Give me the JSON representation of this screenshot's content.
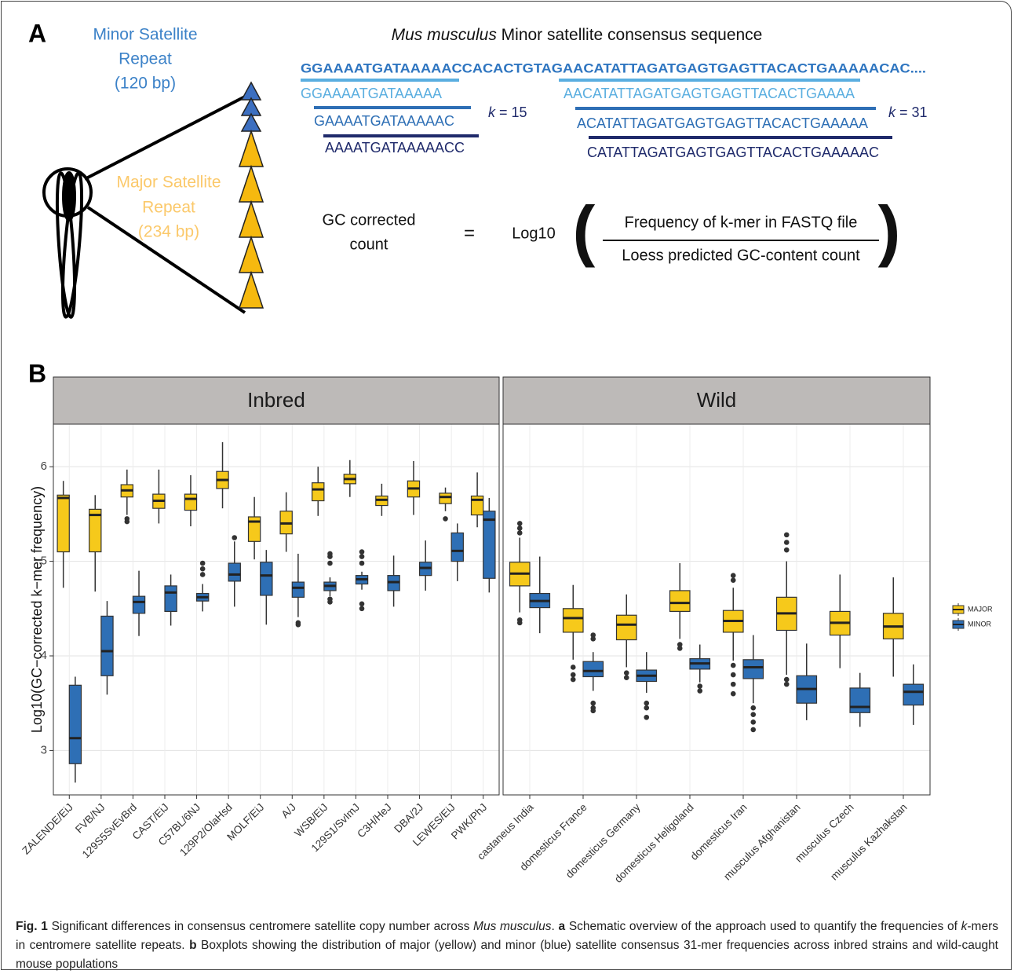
{
  "panel_a": {
    "label": "A",
    "minor_label": [
      "Minor Satellite",
      "Repeat",
      "(120 bp)"
    ],
    "major_label": [
      "Major Satellite",
      "Repeat",
      "(234 bp)"
    ],
    "title_italic": "Mus musculus",
    "title_rest": " Minor satellite consensus sequence",
    "sequence": "GGAAAATGATAAAAACCACACTGTAGAACATATTAGATGAGTGAGTTACACTGAAAAACAC....",
    "kmers15": [
      "GGAAAATGATAAAAA",
      "GAAAATGATAAAAAC",
      "AAAATGATAAAAACC"
    ],
    "kmers31": [
      "AACATATTAGATGAGTGAGTTACACTGAAAA",
      "ACATATTAGATGAGTGAGTTACACTGAAAAA",
      "CATATTAGATGAGTGAGTTACACTGAAAAAC"
    ],
    "k_symbol": "k",
    "k15_rest": " = 15",
    "k31_rest": " = 31",
    "formula_lhs": [
      "GC corrected",
      "count"
    ],
    "formula_eq": "=",
    "formula_log": "Log10",
    "formula_open": "(",
    "formula_close": ")",
    "formula_num": "Frequency of k-mer in FASTQ file",
    "formula_den": "Loess predicted GC-content count"
  },
  "chart_data": {
    "type": "box",
    "panel_label": "B",
    "ylabel": "Log10(GC−corrected k−mer frequency)",
    "ylim": [
      2.53,
      6.45
    ],
    "yticks": [
      3,
      4,
      5,
      6
    ],
    "grid": true,
    "legend": "right",
    "facets": [
      "Inbred",
      "Wild"
    ],
    "categories": [
      [
        "ZALENDE/EiJ",
        "FVB/NJ",
        "129S5SvEvBrd",
        "CAST/EiJ",
        "C57BL/6NJ",
        "129P2/OlaHsd",
        "MOLF/EiJ",
        "A/J",
        "WSB/EiJ",
        "129S1/SvImJ",
        "C3H/HeJ",
        "DBA/2J",
        "LEWES/EiJ",
        "PWK/PhJ"
      ],
      [
        "castaneus India",
        "domesticus France",
        "domesticus Germany",
        "domesticus Heligoland",
        "domesticus Iran",
        "musculus Afghanistan",
        "musculus Czech",
        "musculus Kazhakstan"
      ]
    ],
    "series": [
      {
        "name": "MAJOR",
        "color": "#f6c91b",
        "values": [
          [
            {
              "whislo": 4.72,
              "q1": 5.1,
              "med": 5.67,
              "q3": 5.7,
              "whishi": 5.85,
              "outliers": []
            },
            {
              "whislo": 4.68,
              "q1": 5.1,
              "med": 5.49,
              "q3": 5.55,
              "whishi": 5.7,
              "outliers": []
            },
            {
              "whislo": 5.49,
              "q1": 5.68,
              "med": 5.75,
              "q3": 5.81,
              "whishi": 5.97,
              "outliers": [
                5.45,
                5.42
              ]
            },
            {
              "whislo": 5.4,
              "q1": 5.56,
              "med": 5.64,
              "q3": 5.71,
              "whishi": 5.97,
              "outliers": []
            },
            {
              "whislo": 5.37,
              "q1": 5.54,
              "med": 5.66,
              "q3": 5.71,
              "whishi": 5.91,
              "outliers": []
            },
            {
              "whislo": 5.56,
              "q1": 5.77,
              "med": 5.86,
              "q3": 5.95,
              "whishi": 6.26,
              "outliers": []
            },
            {
              "whislo": 5.02,
              "q1": 5.21,
              "med": 5.42,
              "q3": 5.47,
              "whishi": 5.68,
              "outliers": []
            },
            {
              "whislo": 5.1,
              "q1": 5.29,
              "med": 5.4,
              "q3": 5.53,
              "whishi": 5.73,
              "outliers": []
            },
            {
              "whislo": 5.48,
              "q1": 5.64,
              "med": 5.76,
              "q3": 5.83,
              "whishi": 6.0,
              "outliers": []
            },
            {
              "whislo": 5.68,
              "q1": 5.82,
              "med": 5.87,
              "q3": 5.92,
              "whishi": 6.07,
              "outliers": []
            },
            {
              "whislo": 5.48,
              "q1": 5.59,
              "med": 5.65,
              "q3": 5.69,
              "whishi": 5.82,
              "outliers": []
            },
            {
              "whislo": 5.49,
              "q1": 5.68,
              "med": 5.77,
              "q3": 5.85,
              "whishi": 6.06,
              "outliers": []
            },
            {
              "whislo": 5.53,
              "q1": 5.61,
              "med": 5.68,
              "q3": 5.72,
              "whishi": 5.78,
              "outliers": [
                5.45
              ]
            },
            {
              "whislo": 5.36,
              "q1": 5.49,
              "med": 5.65,
              "q3": 5.69,
              "whishi": 5.94,
              "outliers": []
            }
          ],
          [
            {
              "whislo": 4.46,
              "q1": 4.74,
              "med": 4.87,
              "q3": 4.99,
              "whishi": 5.25,
              "outliers": [
                5.3,
                5.35,
                5.4,
                4.38,
                4.35
              ]
            },
            {
              "whislo": 3.96,
              "q1": 4.25,
              "med": 4.4,
              "q3": 4.5,
              "whishi": 4.75,
              "outliers": [
                3.88,
                3.8,
                3.75
              ]
            },
            {
              "whislo": 3.88,
              "q1": 4.17,
              "med": 4.33,
              "q3": 4.43,
              "whishi": 4.65,
              "outliers": [
                3.82,
                3.77
              ]
            },
            {
              "whislo": 4.18,
              "q1": 4.47,
              "med": 4.56,
              "q3": 4.69,
              "whishi": 4.98,
              "outliers": [
                4.12,
                4.08
              ]
            },
            {
              "whislo": 3.95,
              "q1": 4.25,
              "med": 4.37,
              "q3": 4.48,
              "whishi": 4.72,
              "outliers": [
                4.85,
                4.8,
                3.9,
                3.8,
                3.7,
                3.6
              ]
            },
            {
              "whislo": 3.8,
              "q1": 4.27,
              "med": 4.45,
              "q3": 4.62,
              "whishi": 5.0,
              "outliers": [
                5.28,
                5.2,
                5.12,
                3.75,
                3.7
              ]
            },
            {
              "whislo": 3.87,
              "q1": 4.22,
              "med": 4.35,
              "q3": 4.47,
              "whishi": 4.86,
              "outliers": []
            },
            {
              "whislo": 3.78,
              "q1": 4.18,
              "med": 4.31,
              "q3": 4.45,
              "whishi": 4.83,
              "outliers": []
            }
          ]
        ]
      },
      {
        "name": "MINOR",
        "color": "#2e6fb5",
        "values": [
          [
            {
              "whislo": 2.66,
              "q1": 2.86,
              "med": 3.13,
              "q3": 3.69,
              "whishi": 3.78,
              "outliers": []
            },
            {
              "whislo": 3.59,
              "q1": 3.79,
              "med": 4.05,
              "q3": 4.42,
              "whishi": 4.58,
              "outliers": []
            },
            {
              "whislo": 4.21,
              "q1": 4.45,
              "med": 4.57,
              "q3": 4.63,
              "whishi": 4.9,
              "outliers": []
            },
            {
              "whislo": 4.32,
              "q1": 4.47,
              "med": 4.67,
              "q3": 4.74,
              "whishi": 4.86,
              "outliers": []
            },
            {
              "whislo": 4.47,
              "q1": 4.58,
              "med": 4.62,
              "q3": 4.66,
              "whishi": 4.76,
              "outliers": [
                4.86,
                4.92,
                4.98
              ]
            },
            {
              "whislo": 4.52,
              "q1": 4.79,
              "med": 4.86,
              "q3": 4.98,
              "whishi": 5.21,
              "outliers": [
                5.25
              ]
            },
            {
              "whislo": 4.33,
              "q1": 4.64,
              "med": 4.85,
              "q3": 4.99,
              "whishi": 5.12,
              "outliers": []
            },
            {
              "whislo": 4.41,
              "q1": 4.62,
              "med": 4.72,
              "q3": 4.78,
              "whishi": 5.08,
              "outliers": [
                4.35,
                4.33
              ]
            },
            {
              "whislo": 4.63,
              "q1": 4.69,
              "med": 4.74,
              "q3": 4.78,
              "whishi": 4.83,
              "outliers": [
                5.08,
                5.05,
                4.98,
                4.6,
                4.57
              ]
            },
            {
              "whislo": 4.7,
              "q1": 4.76,
              "med": 4.81,
              "q3": 4.85,
              "whishi": 4.89,
              "outliers": [
                5.1,
                5.05,
                4.98,
                4.55,
                4.5
              ]
            },
            {
              "whislo": 4.52,
              "q1": 4.69,
              "med": 4.78,
              "q3": 4.85,
              "whishi": 5.06,
              "outliers": []
            },
            {
              "whislo": 4.69,
              "q1": 4.85,
              "med": 4.93,
              "q3": 4.99,
              "whishi": 5.22,
              "outliers": []
            },
            {
              "whislo": 4.79,
              "q1": 5.0,
              "med": 5.11,
              "q3": 5.3,
              "whishi": 5.4,
              "outliers": []
            },
            {
              "whislo": 4.67,
              "q1": 4.82,
              "med": 5.44,
              "q3": 5.53,
              "whishi": 5.67,
              "outliers": []
            }
          ],
          [
            {
              "whislo": 4.24,
              "q1": 4.51,
              "med": 4.58,
              "q3": 4.66,
              "whishi": 5.05,
              "outliers": []
            },
            {
              "whislo": 3.63,
              "q1": 3.78,
              "med": 3.84,
              "q3": 3.94,
              "whishi": 4.04,
              "outliers": [
                4.22,
                4.18,
                3.5,
                3.45,
                3.42
              ]
            },
            {
              "whislo": 3.61,
              "q1": 3.73,
              "med": 3.79,
              "q3": 3.85,
              "whishi": 4.04,
              "outliers": [
                3.5,
                3.45,
                3.35
              ]
            },
            {
              "whislo": 3.72,
              "q1": 3.86,
              "med": 3.92,
              "q3": 3.97,
              "whishi": 4.12,
              "outliers": [
                3.68,
                3.63
              ]
            },
            {
              "whislo": 3.5,
              "q1": 3.76,
              "med": 3.88,
              "q3": 3.96,
              "whishi": 4.22,
              "outliers": [
                3.45,
                3.38,
                3.3,
                3.22
              ]
            },
            {
              "whislo": 3.32,
              "q1": 3.5,
              "med": 3.65,
              "q3": 3.79,
              "whishi": 4.13,
              "outliers": []
            },
            {
              "whislo": 3.25,
              "q1": 3.4,
              "med": 3.46,
              "q3": 3.66,
              "whishi": 3.82,
              "outliers": []
            },
            {
              "whislo": 3.27,
              "q1": 3.48,
              "med": 3.62,
              "q3": 3.7,
              "whishi": 3.91,
              "outliers": []
            }
          ]
        ]
      }
    ]
  },
  "caption": {
    "fig": "Fig. 1",
    "t1": " Significant differences in consensus centromere satellite copy number across ",
    "i1": "Mus musculus",
    "t2": ". ",
    "a": "a",
    "t3": " Schematic overview of the approach used to quantify the frequencies of ",
    "k": "k",
    "t4": "-mers in centromere satellite repeats. ",
    "b": "b",
    "t5": " Boxplots showing the distribution of major (yellow) and minor (blue) satellite consensus 31-mer frequencies across inbred strains and wild-caught mouse populations"
  }
}
